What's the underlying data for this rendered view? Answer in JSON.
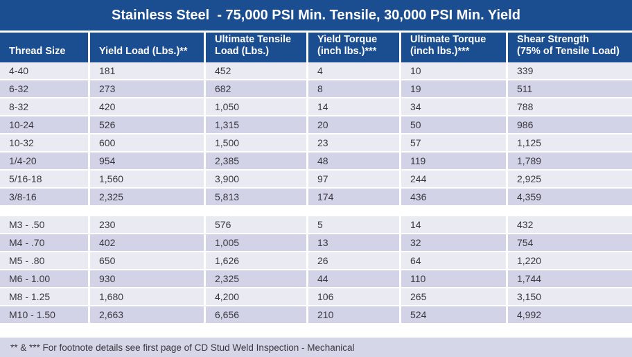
{
  "title": "Stainless Steel  - 75,000 PSI Min. Tensile, 30,000 PSI Min. Yield",
  "colors": {
    "header_blue": "#1b4e91",
    "header_text": "#ffffff",
    "row_light": "#eaeaf3",
    "row_dark": "#d2d3e7",
    "footer_bg": "#d6d6e9",
    "body_text": "#38383f"
  },
  "table": {
    "columns": [
      {
        "line1": "Thread Size",
        "line2": ""
      },
      {
        "line1": "Yield Load (Lbs.)**",
        "line2": ""
      },
      {
        "line1": "Ultimate Tensile",
        "line2": "Load (Lbs.)"
      },
      {
        "line1": "Yield Torque",
        "line2": "(inch lbs.)***"
      },
      {
        "line1": "Ultimate Torque",
        "line2": "(inch lbs.)***"
      },
      {
        "line1": "Shear Strength",
        "line2": "(75% of Tensile Load)"
      }
    ],
    "sections": [
      {
        "rows": [
          {
            "cells": [
              "4-40",
              "181",
              "452",
              "4",
              "10",
              "339"
            ]
          },
          {
            "cells": [
              "6-32",
              "273",
              "682",
              "8",
              "19",
              "511"
            ]
          },
          {
            "cells": [
              "8-32",
              "420",
              "1,050",
              "14",
              "34",
              "788"
            ]
          },
          {
            "cells": [
              "10-24",
              "526",
              "1,315",
              "20",
              "50",
              "986"
            ]
          },
          {
            "cells": [
              "10-32",
              "600",
              "1,500",
              "23",
              "57",
              "1,125"
            ]
          },
          {
            "cells": [
              "1/4-20",
              "954",
              "2,385",
              "48",
              "119",
              "1,789"
            ]
          },
          {
            "cells": [
              "5/16-18",
              "1,560",
              "3,900",
              "97",
              "244",
              "2,925"
            ]
          },
          {
            "cells": [
              "3/8-16",
              "2,325",
              "5,813",
              "174",
              "436",
              "4,359"
            ]
          }
        ]
      },
      {
        "rows": [
          {
            "cells": [
              "M3 - .50",
              "230",
              "576",
              "5",
              "14",
              "432"
            ]
          },
          {
            "cells": [
              "M4 - .70",
              "402",
              "1,005",
              "13",
              "32",
              "754"
            ]
          },
          {
            "cells": [
              "M5 - .80",
              "650",
              "1,626",
              "26",
              "64",
              "1,220"
            ]
          },
          {
            "cells": [
              "M6 - 1.00",
              "930",
              "2,325",
              "44",
              "110",
              "1,744"
            ]
          },
          {
            "cells": [
              "M8 - 1.25",
              "1,680",
              "4,200",
              "106",
              "265",
              "3,150"
            ]
          },
          {
            "cells": [
              "M10 - 1.50",
              "2,663",
              "6,656",
              "210",
              "524",
              "4,992"
            ]
          }
        ]
      }
    ]
  },
  "footer": {
    "note": "** & *** For footnote details see first page of CD Stud Weld Inspection - Mechanical"
  }
}
